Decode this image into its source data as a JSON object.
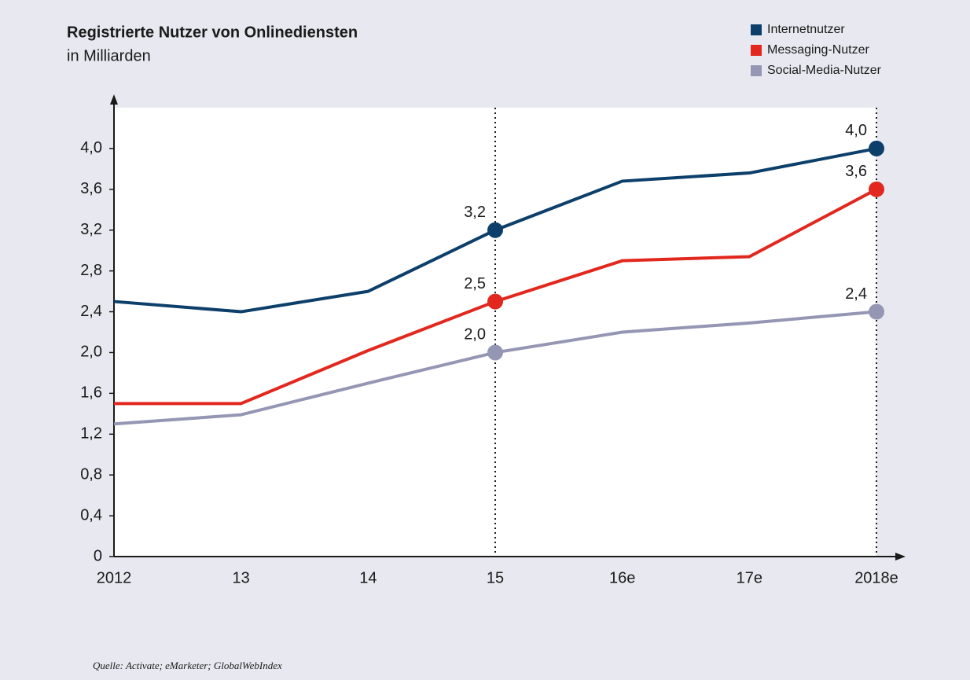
{
  "chart_data": {
    "type": "line",
    "title": "Registrierte Nutzer von Onlinediensten",
    "subtitle": "in Milliarden",
    "source": "Quelle: Activate; eMarketer; GlobalWebIndex",
    "categories": [
      "2012",
      "13",
      "14",
      "15",
      "16e",
      "17e",
      "2018e"
    ],
    "series": [
      {
        "name": "Internetnutzer",
        "color": "#0d3f6b",
        "values": [
          2.5,
          2.4,
          2.6,
          3.2,
          3.68,
          3.76,
          4.0
        ],
        "value_labels": [
          null,
          null,
          null,
          "3,2",
          null,
          null,
          "4,0"
        ]
      },
      {
        "name": "Messaging-Nutzer",
        "color": "#e2281e",
        "values": [
          1.5,
          1.5,
          2.02,
          2.5,
          2.9,
          2.94,
          3.6
        ],
        "value_labels": [
          null,
          null,
          null,
          "2,5",
          null,
          null,
          "3,6"
        ]
      },
      {
        "name": "Social-Media-Nutzer",
        "color": "#9596b4",
        "values": [
          1.3,
          1.39,
          1.7,
          2.0,
          2.2,
          2.29,
          2.4
        ],
        "value_labels": [
          null,
          null,
          null,
          "2,0",
          null,
          null,
          "2,4"
        ]
      }
    ],
    "ylim": [
      0,
      4.4
    ],
    "yticks": [
      0,
      {
        "value": 0.4,
        "label": "0,4"
      },
      {
        "value": 0.8,
        "label": "0,8"
      },
      {
        "value": 1.2,
        "label": "1,2"
      },
      {
        "value": 1.6,
        "label": "1,6"
      },
      {
        "value": 2.0,
        "label": "2,0"
      },
      {
        "value": 2.4,
        "label": "2,4"
      },
      {
        "value": 2.8,
        "label": "2,8"
      },
      {
        "value": 3.2,
        "label": "3,2"
      },
      {
        "value": 3.6,
        "label": "3,6"
      },
      {
        "value": 4.0,
        "label": "4,0"
      }
    ],
    "grid": false,
    "legend": "top-right"
  }
}
